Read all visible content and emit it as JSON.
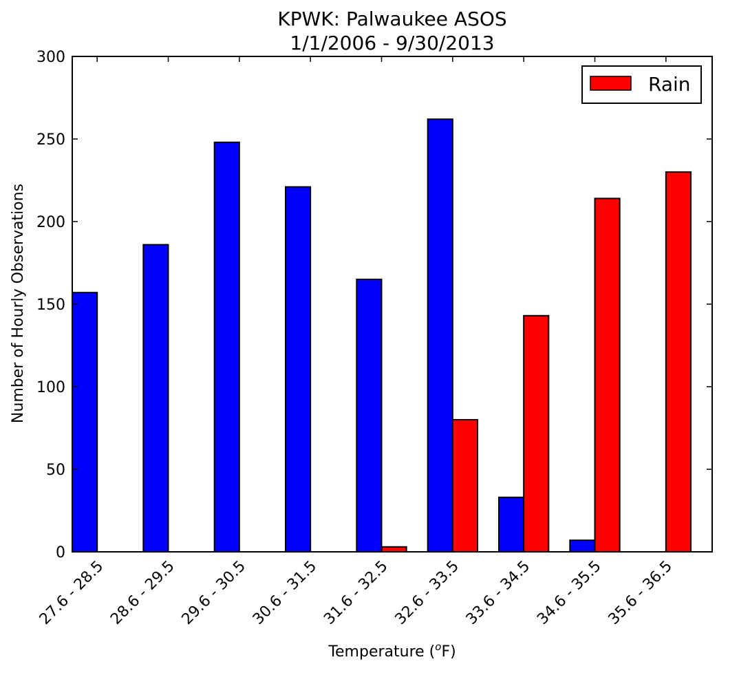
{
  "chart_data": {
    "type": "bar",
    "title_line1": "KPWK: Palwaukee ASOS",
    "title_line2": "1/1/2006 - 9/30/2013",
    "xlabel_main": "Temperature (",
    "xlabel_sup": "o",
    "xlabel_unit": "F)",
    "ylabel": "Number of Hourly Observations",
    "ylim": [
      0,
      300
    ],
    "yticks": [
      0,
      50,
      100,
      150,
      200,
      250,
      300
    ],
    "categories": [
      "27.6 - 28.5",
      "28.6 - 29.5",
      "29.6 - 30.5",
      "30.6 - 31.5",
      "31.6 - 32.5",
      "32.6 - 33.5",
      "33.6 - 34.5",
      "34.6 - 35.5",
      "35.6 - 36.5"
    ],
    "legend_position": "upper-right",
    "series": [
      {
        "color": "#0000ff",
        "values": [
          157,
          186,
          248,
          221,
          165,
          262,
          33,
          7,
          0
        ]
      },
      {
        "name": "Rain",
        "color": "#ff0000",
        "values": [
          0,
          0,
          0,
          0,
          3,
          80,
          143,
          214,
          230
        ]
      }
    ]
  }
}
